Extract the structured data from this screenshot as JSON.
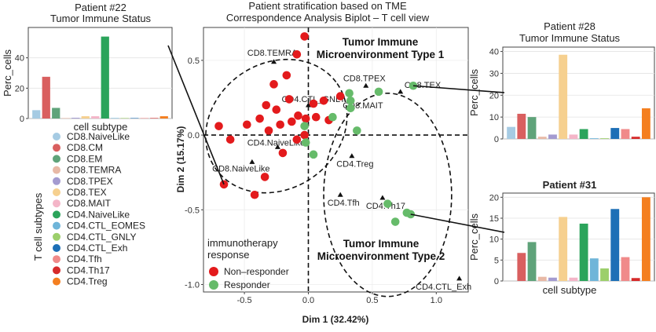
{
  "colors": {
    "CD8.NaiveLike": "#a6cbe3",
    "CD8.CM": "#d95f5f",
    "CD8.EM": "#5fa37a",
    "CD8.TEMRA": "#e8b9a6",
    "CD8.TPEX": "#a49bd0",
    "CD8.TEX": "#f6d08f",
    "CD8.MAIT": "#f4b5c8",
    "CD4.NaiveLike": "#2ba45b",
    "CD4.CTL_EOMES": "#6fb5d9",
    "CD4.CTL_GNLY": "#9ccf6b",
    "CD4.CTL_Exh": "#1d6fb6",
    "CD4.Tfh": "#f08a8a",
    "CD4.Th17": "#d62a2a",
    "CD4.Treg": "#f47f20",
    "non_responder": "#e31a1c",
    "responder": "#66bb6a"
  },
  "legend": {
    "title": "T cell subtypes",
    "items": [
      "CD8.NaiveLike",
      "CD8.CM",
      "CD8.EM",
      "CD8.TEMRA",
      "CD8.TPEX",
      "CD8.TEX",
      "CD8.MAIT",
      "CD4.NaiveLike",
      "CD4.CTL_EOMES",
      "CD4.CTL_GNLY",
      "CD4.CTL_Exh",
      "CD4.Tfh",
      "CD4.Th17",
      "CD4.Treg"
    ]
  },
  "chart_data": [
    {
      "id": "p22",
      "type": "bar",
      "title": "Patient #22",
      "subtitle": "Tumor Immune Status",
      "xlabel": "cell subtype",
      "ylabel": "Perc_cells",
      "ylim": [
        0,
        60
      ],
      "yticks": [
        0,
        20,
        40
      ],
      "categories": [
        "CD8.NaiveLike",
        "CD8.CM",
        "CD8.EM",
        "CD8.TEMRA",
        "CD8.TPEX",
        "CD8.TEX",
        "CD8.MAIT",
        "CD4.NaiveLike",
        "CD4.CTL_EOMES",
        "CD4.CTL_GNLY",
        "CD4.CTL_Exh",
        "CD4.Tfh",
        "CD4.Th17",
        "CD4.Treg"
      ],
      "values": [
        5.5,
        27.5,
        7,
        0.3,
        0.5,
        1.5,
        1.5,
        54,
        0.3,
        0.3,
        0.3,
        0.3,
        0.3,
        1.5
      ]
    },
    {
      "id": "p28",
      "type": "bar",
      "title": "Patient #28",
      "subtitle": "Tumor Immune Status",
      "xlabel": "",
      "ylabel": "Perc_cells",
      "ylim": [
        0,
        42
      ],
      "yticks": [
        0,
        10,
        20,
        30,
        40
      ],
      "categories": [
        "CD8.NaiveLike",
        "CD8.CM",
        "CD8.EM",
        "CD8.TEMRA",
        "CD8.TPEX",
        "CD8.TEX",
        "CD8.MAIT",
        "CD4.NaiveLike",
        "CD4.CTL_EOMES",
        "CD4.CTL_GNLY",
        "CD4.CTL_Exh",
        "CD4.Tfh",
        "CD4.Th17",
        "CD4.Treg"
      ],
      "values": [
        5.5,
        11.5,
        10,
        1,
        2,
        38.5,
        2,
        4.5,
        0.3,
        0.3,
        5,
        4.5,
        1,
        14
      ]
    },
    {
      "id": "p31",
      "type": "bar",
      "title": "Patient #31",
      "subtitle": "",
      "xlabel": "cell subtype",
      "ylabel": "Perc_cells",
      "ylim": [
        0,
        21
      ],
      "yticks": [
        0,
        5,
        10,
        15,
        20
      ],
      "categories": [
        "CD8.NaiveLike",
        "CD8.CM",
        "CD8.EM",
        "CD8.TEMRA",
        "CD8.TPEX",
        "CD8.TEX",
        "CD8.MAIT",
        "CD4.NaiveLike",
        "CD4.CTL_EOMES",
        "CD4.CTL_GNLY",
        "CD4.CTL_Exh",
        "CD4.Tfh",
        "CD4.Th17",
        "CD4.Treg"
      ],
      "values": [
        0,
        6.7,
        9.3,
        1,
        0.8,
        15.3,
        0.8,
        13.7,
        5.4,
        3,
        17.2,
        5.7,
        0.7,
        20
      ]
    },
    {
      "id": "biplot",
      "type": "scatter",
      "title": "Patient stratification based on TME",
      "subtitle": "Correspondence Analysis Biplot – T cell view",
      "xlabel": "Dim 1 (32.42%)",
      "ylabel": "Dim 2 (15.17%)",
      "xlim": [
        -0.82,
        1.25
      ],
      "ylim": [
        -1.05,
        0.72
      ],
      "xticks": [
        -0.5,
        0.0,
        0.5,
        1.0
      ],
      "yticks": [
        -1.0,
        -0.5,
        0.0,
        0.5
      ],
      "xtick_labels": [
        "-0.5",
        "0.0",
        "0.5",
        "1.0"
      ],
      "ytick_labels": [
        "-1.0",
        "-0.5",
        "0.0",
        "0.5"
      ],
      "legend_title": "immunotherapy\nresponse",
      "legend_entries": [
        "Non–responder",
        "Responder"
      ],
      "legend_position": "bottom-left",
      "regions": [
        "Tumor Immune\nMicroenvironment Type 1",
        "Tumor Immune\nMicroenvironment Type 2"
      ],
      "cell_types": [
        {
          "name": "CD8.TEMRA",
          "x": -0.27,
          "y": 0.49
        },
        {
          "name": "CD8.TPEX",
          "x": 0.45,
          "y": 0.33
        },
        {
          "name": "CD8.TEX",
          "x": 0.72,
          "y": 0.29
        },
        {
          "name": "CD8.MAIT",
          "x": 0.33,
          "y": 0.19
        },
        {
          "name": "CD4.CTL_GNLY",
          "x": 0.0,
          "y": 0.2
        },
        {
          "name": "CD4.NaiveLike",
          "x": -0.24,
          "y": -0.08
        },
        {
          "name": "CD8.NaiveLike",
          "x": -0.44,
          "y": -0.18
        },
        {
          "name": "CD4.Treg",
          "x": 0.34,
          "y": -0.14
        },
        {
          "name": "CD4.Tfh",
          "x": 0.25,
          "y": -0.4
        },
        {
          "name": "CD4.Th17",
          "x": 0.58,
          "y": -0.42
        },
        {
          "name": "CD4.CTL_Exh",
          "x": 1.18,
          "y": -0.96
        }
      ],
      "non_responders": [
        {
          "x": -0.03,
          "y": 0.66
        },
        {
          "x": -0.09,
          "y": 0.54
        },
        {
          "x": -0.17,
          "y": 0.4
        },
        {
          "x": -0.27,
          "y": 0.34
        },
        {
          "x": -0.15,
          "y": 0.24
        },
        {
          "x": -0.33,
          "y": 0.2
        },
        {
          "x": -0.25,
          "y": 0.17
        },
        {
          "x": 0.04,
          "y": 0.21
        },
        {
          "x": 0.12,
          "y": 0.23
        },
        {
          "x": 0.25,
          "y": 0.26
        },
        {
          "x": -0.08,
          "y": 0.13
        },
        {
          "x": -0.02,
          "y": 0.11
        },
        {
          "x": -0.38,
          "y": 0.11
        },
        {
          "x": -0.13,
          "y": 0.09
        },
        {
          "x": -0.22,
          "y": 0.07
        },
        {
          "x": -0.48,
          "y": 0.07
        },
        {
          "x": -0.7,
          "y": 0.06
        },
        {
          "x": -0.31,
          "y": 0.03
        },
        {
          "x": -0.03,
          "y": 0.0
        },
        {
          "x": -0.09,
          "y": -0.03
        },
        {
          "x": -0.61,
          "y": -0.03
        },
        {
          "x": -0.2,
          "y": -0.12
        },
        {
          "x": -0.34,
          "y": -0.28
        },
        {
          "x": -0.66,
          "y": -0.33
        },
        {
          "x": -0.42,
          "y": -0.4
        },
        {
          "x": 0.06,
          "y": 0.12
        },
        {
          "x": 0.16,
          "y": 0.1
        }
      ],
      "responders": [
        {
          "x": 0.32,
          "y": 0.28
        },
        {
          "x": 0.33,
          "y": 0.23
        },
        {
          "x": 0.33,
          "y": 0.18
        },
        {
          "x": 0.55,
          "y": 0.29
        },
        {
          "x": 0.82,
          "y": 0.33
        },
        {
          "x": 0.19,
          "y": 0.12
        },
        {
          "x": -0.03,
          "y": 0.06
        },
        {
          "x": 0.38,
          "y": 0.03
        },
        {
          "x": -0.02,
          "y": -0.05
        },
        {
          "x": 0.04,
          "y": -0.13
        },
        {
          "x": 0.62,
          "y": -0.46
        },
        {
          "x": 0.77,
          "y": -0.52
        },
        {
          "x": 0.68,
          "y": -0.58
        },
        {
          "x": 0.8,
          "y": -0.53
        }
      ],
      "ellipses": [
        {
          "cx": -0.25,
          "cy": 0.06,
          "rx": 0.58,
          "ry": 0.42,
          "angle": 35
        },
        {
          "cx": 0.62,
          "cy": -0.4,
          "rx": 0.5,
          "ry": 0.68,
          "angle": 0
        }
      ]
    }
  ]
}
